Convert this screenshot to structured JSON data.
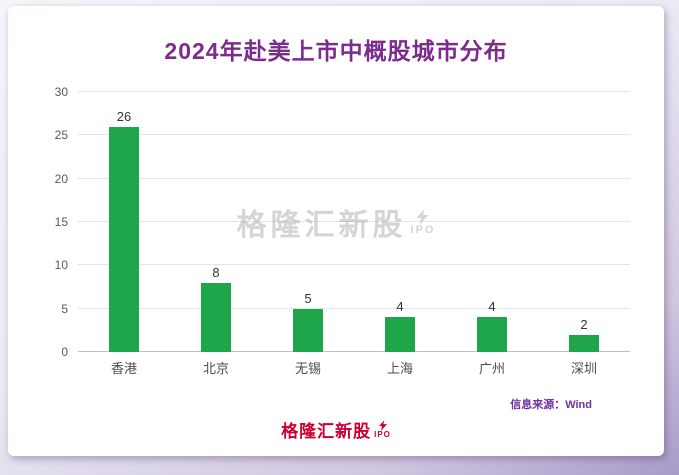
{
  "page": {
    "source_note": "信息来源：Wind",
    "watermark": {
      "text": "格隆汇新股",
      "sub": "IPO"
    },
    "footer_logo": {
      "text": "格隆汇新股",
      "sub": "IPO"
    }
  },
  "colors": {
    "bar": "#1fa64a",
    "title": "#7b2c8d",
    "source": "#7030a0",
    "logo": "#cc0033",
    "watermark": "#8a8a8a"
  },
  "chart_data": {
    "type": "bar",
    "title": "2024年赴美上市中概股城市分布",
    "categories": [
      "香港",
      "北京",
      "无锡",
      "上海",
      "广州",
      "深圳"
    ],
    "values": [
      26,
      8,
      5,
      4,
      4,
      2
    ],
    "xlabel": "",
    "ylabel": "",
    "ylim": [
      0,
      30
    ],
    "yticks": [
      0,
      5,
      10,
      15,
      20,
      25,
      30
    ],
    "grid": true,
    "legend": "none",
    "bar_color": "#1fa64a"
  }
}
